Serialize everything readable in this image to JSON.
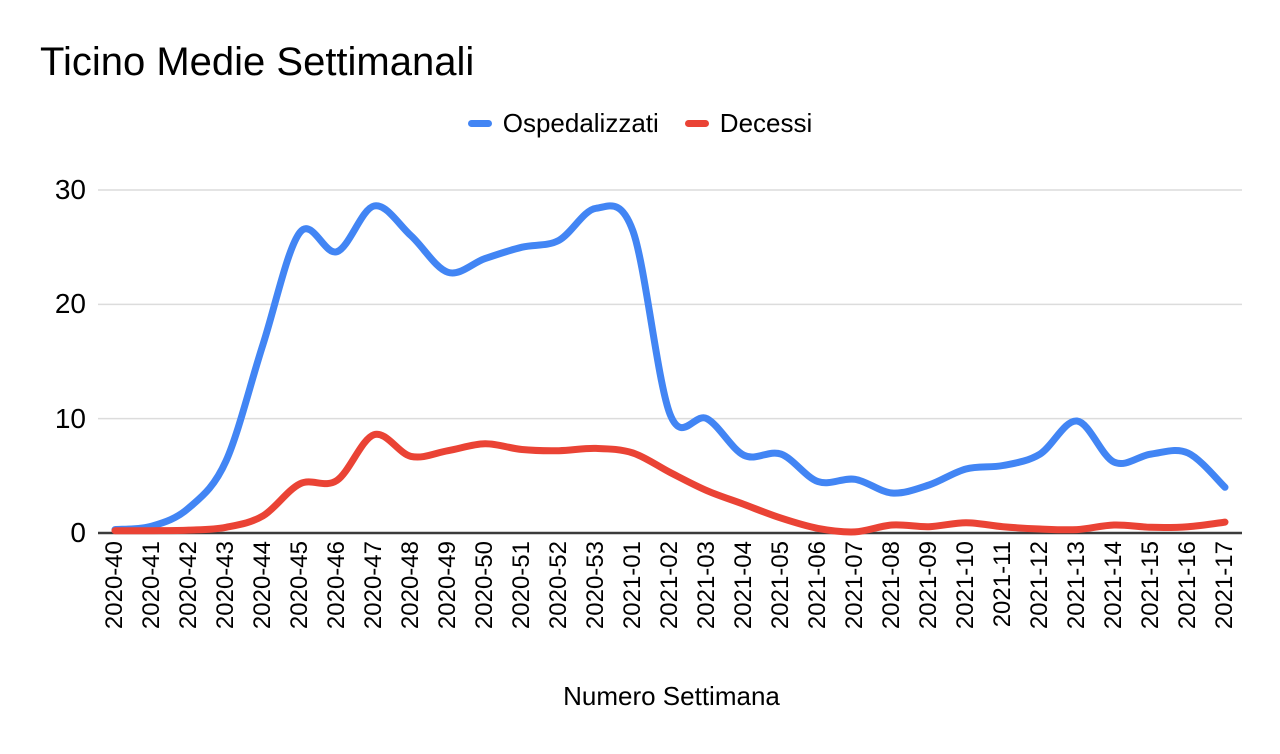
{
  "title": "Ticino Medie Settimanali",
  "x_axis_title": "Numero Settimana",
  "colors": {
    "background": "#ffffff",
    "grid": "#dcdcdc",
    "axis_line": "#3b3b3b",
    "text": "#000000",
    "ospedalizzati": "#4285F4",
    "decessi": "#EA4335"
  },
  "chart_data": {
    "type": "line",
    "smooth": true,
    "title": "Ticino Medie Settimanali",
    "xlabel": "Numero Settimana",
    "ylabel": "",
    "ylim": [
      0,
      30
    ],
    "y_ticks": [
      0,
      10,
      20,
      30
    ],
    "grid": true,
    "legend_position": "top",
    "categories": [
      "2020-40",
      "2020-41",
      "2020-42",
      "2020-43",
      "2020-44",
      "2020-45",
      "2020-46",
      "2020-47",
      "2020-48",
      "2020-49",
      "2020-50",
      "2020-51",
      "2020-52",
      "2020-53",
      "2021-01",
      "2021-02",
      "2021-03",
      "2021-04",
      "2021-05",
      "2021-06",
      "2021-07",
      "2021-08",
      "2021-09",
      "2021-10",
      "2021-11",
      "2021-12",
      "2021-13",
      "2021-14",
      "2021-15",
      "2021-16",
      "2021-17"
    ],
    "series": [
      {
        "name": "Ospedalizzati",
        "color": "#4285F4",
        "values": [
          0.3,
          0.6,
          2.2,
          6.3,
          16.5,
          26.3,
          24.6,
          28.6,
          26.0,
          22.8,
          24.0,
          25.0,
          25.6,
          28.4,
          26.4,
          10.4,
          10.0,
          6.8,
          6.9,
          4.5,
          4.7,
          3.5,
          4.2,
          5.6,
          5.9,
          6.9,
          9.8,
          6.2,
          6.9,
          7.0,
          4.0
        ]
      },
      {
        "name": "Decessi",
        "color": "#EA4335",
        "values": [
          0.2,
          0.2,
          0.25,
          0.5,
          1.5,
          4.3,
          4.6,
          8.6,
          6.7,
          7.2,
          7.8,
          7.3,
          7.2,
          7.4,
          7.0,
          5.3,
          3.7,
          2.5,
          1.3,
          0.4,
          0.1,
          0.7,
          0.55,
          0.9,
          0.55,
          0.35,
          0.3,
          0.7,
          0.5,
          0.55,
          0.95
        ]
      }
    ]
  }
}
